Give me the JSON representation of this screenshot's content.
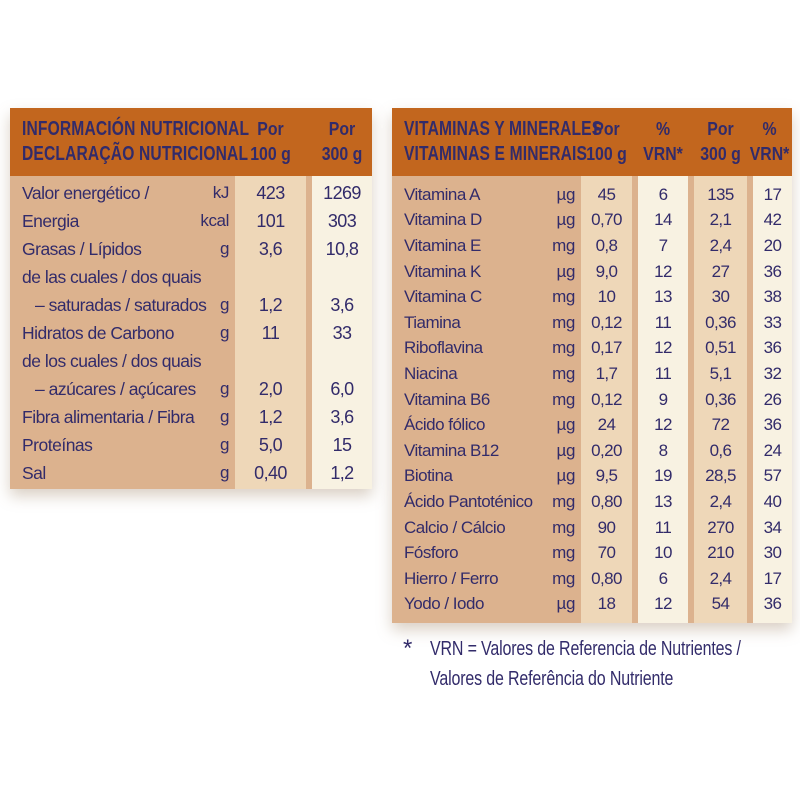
{
  "colors": {
    "header_bg": "#c2661e",
    "body_bg": "#dcb28e",
    "stripe_light": "#eed7b8",
    "stripe_cream": "#f8f2e2",
    "text_navy": "#322b6a",
    "page_bg": "#ffffff"
  },
  "left_table": {
    "title_line1": "INFORMACIÓN NUTRICIONAL",
    "title_line2": "DECLARAÇÃO NUTRICIONAL",
    "col_headers": [
      {
        "top": "Por",
        "bottom": "100 g"
      },
      {
        "top": "Por",
        "bottom": "300 g"
      }
    ],
    "rows": [
      {
        "label": "Valor energético /",
        "unit": "kJ",
        "per100": "423",
        "per300": "1269"
      },
      {
        "label": "Energia",
        "unit": "kcal",
        "per100": "101",
        "per300": "303"
      },
      {
        "label": "Grasas / Lípidos",
        "unit": "g",
        "per100": "3,6",
        "per300": "10,8"
      },
      {
        "label": "de las cuales / dos quais",
        "unit": "",
        "per100": "",
        "per300": ""
      },
      {
        "label": "– saturadas / saturados",
        "unit": "g",
        "per100": "1,2",
        "per300": "3,6",
        "indent": true
      },
      {
        "label": "Hidratos de Carbono",
        "unit": "g",
        "per100": "11",
        "per300": "33"
      },
      {
        "label": "de los cuales / dos quais",
        "unit": "",
        "per100": "",
        "per300": ""
      },
      {
        "label": "– azúcares / açúcares",
        "unit": "g",
        "per100": "2,0",
        "per300": "6,0",
        "indent": true
      },
      {
        "label": "Fibra alimentaria / Fibra",
        "unit": "g",
        "per100": "1,2",
        "per300": "3,6"
      },
      {
        "label": "Proteínas",
        "unit": "g",
        "per100": "5,0",
        "per300": "15"
      },
      {
        "label": "Sal",
        "unit": "g",
        "per100": "0,40",
        "per300": "1,2"
      }
    ]
  },
  "right_table": {
    "title_line1": "VITAMINAS Y MINERALES",
    "title_line2": "VITAMINAS E MINERAIS",
    "col_headers": [
      {
        "top": "Por",
        "bottom": "100 g"
      },
      {
        "top": "%",
        "bottom": "VRN*"
      },
      {
        "top": "Por",
        "bottom": "300 g"
      },
      {
        "top": "%",
        "bottom": "VRN*"
      }
    ],
    "rows": [
      {
        "label": "Vitamina A",
        "unit": "µg",
        "per100": "45",
        "vrn100": "6",
        "per300": "135",
        "vrn300": "17"
      },
      {
        "label": "Vitamina D",
        "unit": "µg",
        "per100": "0,70",
        "vrn100": "14",
        "per300": "2,1",
        "vrn300": "42"
      },
      {
        "label": "Vitamina E",
        "unit": "mg",
        "per100": "0,8",
        "vrn100": "7",
        "per300": "2,4",
        "vrn300": "20"
      },
      {
        "label": "Vitamina K",
        "unit": "µg",
        "per100": "9,0",
        "vrn100": "12",
        "per300": "27",
        "vrn300": "36"
      },
      {
        "label": "Vitamina C",
        "unit": "mg",
        "per100": "10",
        "vrn100": "13",
        "per300": "30",
        "vrn300": "38"
      },
      {
        "label": "Tiamina",
        "unit": "mg",
        "per100": "0,12",
        "vrn100": "11",
        "per300": "0,36",
        "vrn300": "33"
      },
      {
        "label": "Riboflavina",
        "unit": "mg",
        "per100": "0,17",
        "vrn100": "12",
        "per300": "0,51",
        "vrn300": "36"
      },
      {
        "label": "Niacina",
        "unit": "mg",
        "per100": "1,7",
        "vrn100": "11",
        "per300": "5,1",
        "vrn300": "32"
      },
      {
        "label": "Vitamina B6",
        "unit": "mg",
        "per100": "0,12",
        "vrn100": "9",
        "per300": "0,36",
        "vrn300": "26"
      },
      {
        "label": "Ácido fólico",
        "unit": "µg",
        "per100": "24",
        "vrn100": "12",
        "per300": "72",
        "vrn300": "36"
      },
      {
        "label": "Vitamina B12",
        "unit": "µg",
        "per100": "0,20",
        "vrn100": "8",
        "per300": "0,6",
        "vrn300": "24"
      },
      {
        "label": "Biotina",
        "unit": "µg",
        "per100": "9,5",
        "vrn100": "19",
        "per300": "28,5",
        "vrn300": "57"
      },
      {
        "label": "Ácido Pantoténico",
        "unit": "mg",
        "per100": "0,80",
        "vrn100": "13",
        "per300": "2,4",
        "vrn300": "40"
      },
      {
        "label": "Calcio / Cálcio",
        "unit": "mg",
        "per100": "90",
        "vrn100": "11",
        "per300": "270",
        "vrn300": "34"
      },
      {
        "label": "Fósforo",
        "unit": "mg",
        "per100": "70",
        "vrn100": "10",
        "per300": "210",
        "vrn300": "30"
      },
      {
        "label": "Hierro / Ferro",
        "unit": "mg",
        "per100": "0,80",
        "vrn100": "6",
        "per300": "2,4",
        "vrn300": "17"
      },
      {
        "label": "Yodo / Iodo",
        "unit": "µg",
        "per100": "18",
        "vrn100": "12",
        "per300": "54",
        "vrn300": "36"
      }
    ]
  },
  "footnote": {
    "marker": "*",
    "line1": "VRN = Valores de Referencia de Nutrientes /",
    "line2": "Valores de Referência do Nutriente"
  }
}
